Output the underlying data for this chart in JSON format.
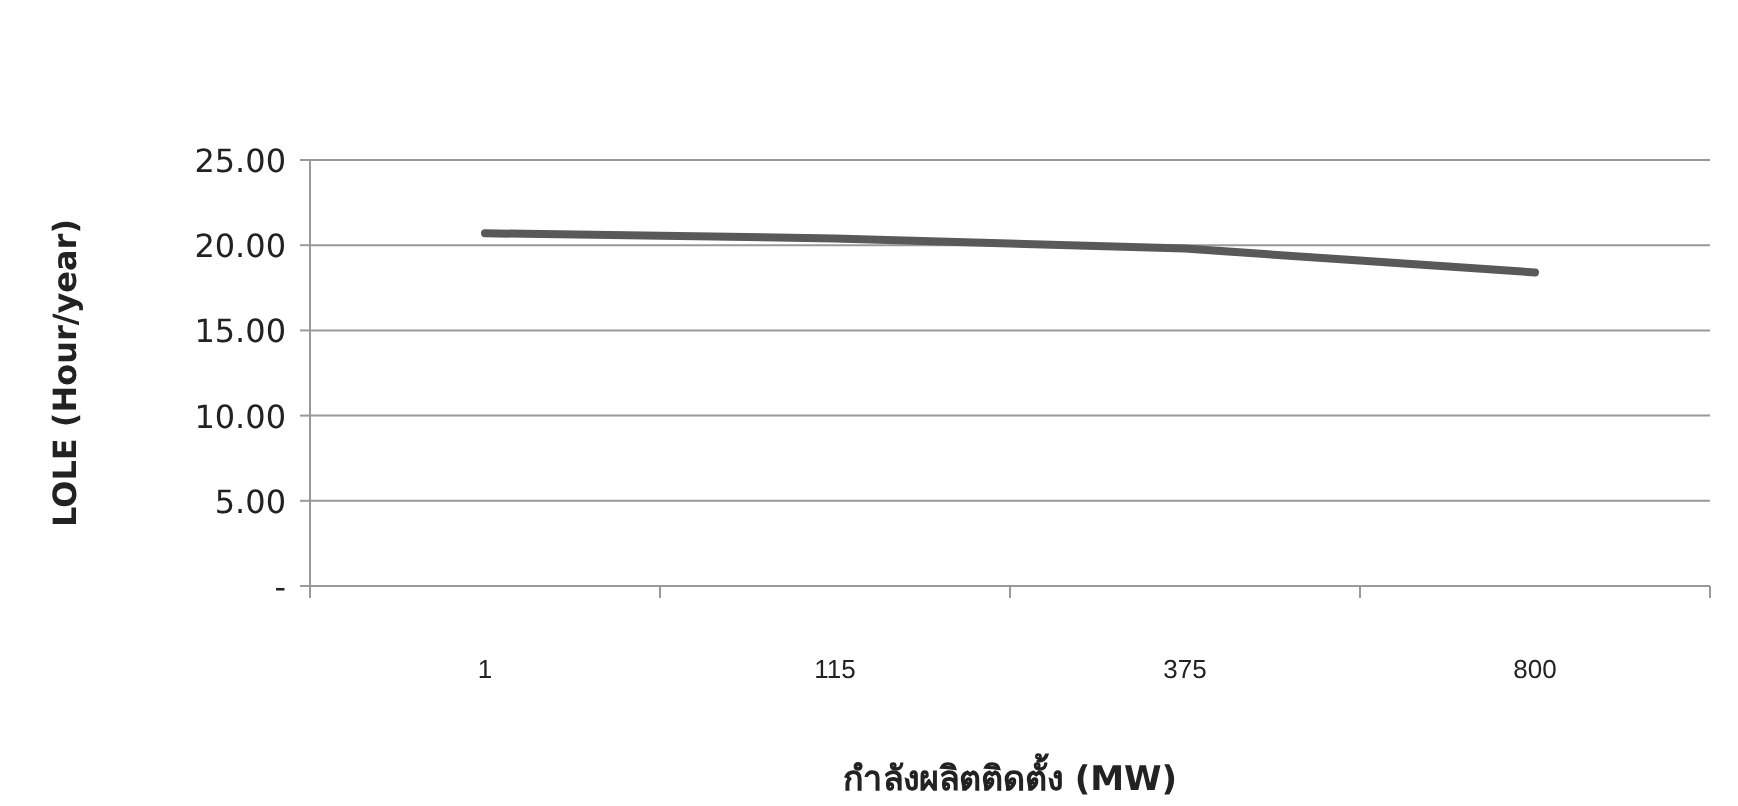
{
  "chart_data": {
    "type": "line",
    "xlabel": "กำลังผลิตติดตั้ง (MW)",
    "ylabel": "LOLE (Hour/year)",
    "categories": [
      "1",
      "115",
      "375",
      "800"
    ],
    "series": [
      {
        "color": "#595959",
        "values": [
          20.7,
          20.4,
          19.8,
          18.4
        ]
      }
    ],
    "ylim": [
      0,
      25
    ],
    "yticks": [
      {
        "value": 0,
        "label": "-"
      },
      {
        "value": 5,
        "label": "5.00"
      },
      {
        "value": 10,
        "label": "10.00"
      },
      {
        "value": 15,
        "label": "15.00"
      },
      {
        "value": 20,
        "label": "20.00"
      },
      {
        "value": 25,
        "label": "25.00"
      }
    ],
    "grid": "y",
    "marker": "none",
    "line_style": "solid"
  }
}
